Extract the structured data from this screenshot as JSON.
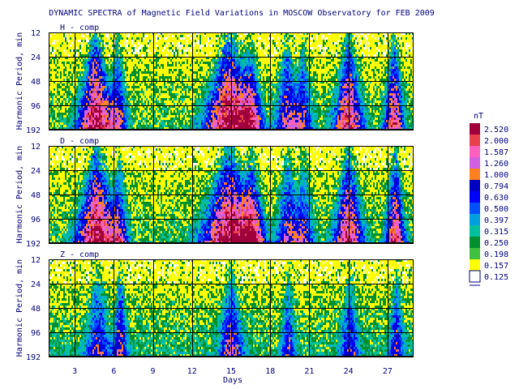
{
  "chart_data": {
    "type": "heatmap",
    "title": "DYNAMIC SPECTRA of Magnetic Field Variations in MOSCOW Observatory for FEB 2009",
    "xlabel": "Days",
    "ylabel": "Harmonic Period, min",
    "x_ticks": [
      "3",
      "6",
      "9",
      "12",
      "15",
      "18",
      "21",
      "24",
      "27"
    ],
    "x_tick_values": [
      3,
      6,
      9,
      12,
      15,
      18,
      21,
      24,
      27
    ],
    "xlim": [
      1,
      29
    ],
    "y_ticks": [
      "12",
      "24",
      "48",
      "96",
      "192"
    ],
    "y_tick_values": [
      12,
      24,
      48,
      96,
      192
    ],
    "ylim": [
      12,
      192
    ],
    "y_scale": "log",
    "grid": true,
    "colorbar": {
      "unit": "nT",
      "levels": [
        "2.520",
        "2.000",
        "1.587",
        "1.260",
        "1.000",
        "0.794",
        "0.630",
        "0.500",
        "0.397",
        "0.315",
        "0.250",
        "0.198",
        "0.157",
        "0.125"
      ],
      "colors": [
        "#a0003c",
        "#e8404c",
        "#ff60c0",
        "#d060e0",
        "#ff8020",
        "#0000c0",
        "#0000ff",
        "#0050ff",
        "#00a0e0",
        "#00c0a0",
        "#009030",
        "#40c040",
        "#ffff00",
        "#ffffff"
      ]
    },
    "panels": [
      {
        "label": "H - comp",
        "events": [
          {
            "day": 4.6,
            "strength": 1.0,
            "width": 0.7
          },
          {
            "day": 6.3,
            "strength": 0.55,
            "width": 0.4
          },
          {
            "day": 14.9,
            "strength": 1.0,
            "width": 1.0
          },
          {
            "day": 16.5,
            "strength": 0.6,
            "width": 0.5
          },
          {
            "day": 19.3,
            "strength": 0.6,
            "width": 0.5
          },
          {
            "day": 20.5,
            "strength": 0.5,
            "width": 0.4
          },
          {
            "day": 24.0,
            "strength": 0.85,
            "width": 0.6
          },
          {
            "day": 27.5,
            "strength": 0.8,
            "width": 0.4
          }
        ]
      },
      {
        "label": "D - comp",
        "events": [
          {
            "day": 4.7,
            "strength": 1.0,
            "width": 0.8
          },
          {
            "day": 6.4,
            "strength": 0.5,
            "width": 0.4
          },
          {
            "day": 14.9,
            "strength": 1.0,
            "width": 1.1
          },
          {
            "day": 16.6,
            "strength": 0.65,
            "width": 0.5
          },
          {
            "day": 19.4,
            "strength": 0.55,
            "width": 0.5
          },
          {
            "day": 20.6,
            "strength": 0.45,
            "width": 0.4
          },
          {
            "day": 24.0,
            "strength": 0.85,
            "width": 0.6
          },
          {
            "day": 27.6,
            "strength": 0.8,
            "width": 0.4
          }
        ]
      },
      {
        "label": "Z - comp",
        "events": [
          {
            "day": 4.8,
            "strength": 0.45,
            "width": 0.5
          },
          {
            "day": 6.5,
            "strength": 0.55,
            "width": 0.3
          },
          {
            "day": 15.0,
            "strength": 0.55,
            "width": 0.5
          },
          {
            "day": 19.4,
            "strength": 0.4,
            "width": 0.3
          },
          {
            "day": 24.1,
            "strength": 0.45,
            "width": 0.4
          },
          {
            "day": 27.7,
            "strength": 0.45,
            "width": 0.3
          }
        ]
      }
    ]
  }
}
